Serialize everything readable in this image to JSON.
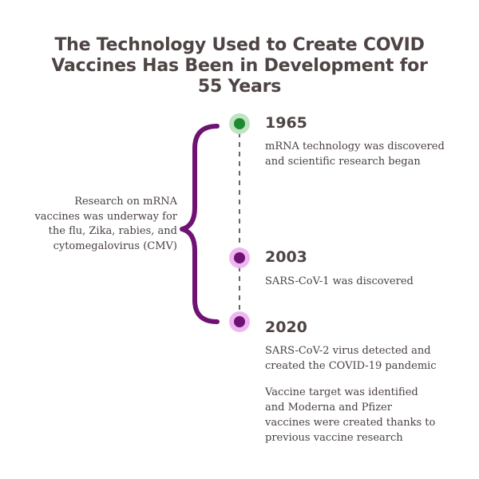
{
  "title": {
    "line1": "The Technology Used to Create COVID",
    "line2": "Vaccines Has Been in Development for",
    "line3": "55 Years"
  },
  "side_note": {
    "line1": "Research on mRNA",
    "line2": "vaccines was underway for",
    "line3": "the flu, Zika, rabies, and",
    "line4": "cytomegalovirus (CMV)"
  },
  "events": [
    {
      "year": "1965",
      "desc_line1": "mRNA technology was discovered",
      "desc_line2": "and scientific research began"
    },
    {
      "year": "2003",
      "desc_line1": "SARS-CoV-1 was discovered"
    },
    {
      "year": "2020",
      "desc_line1": "SARS-CoV-2 virus detected and",
      "desc_line2": "created the COVID-19 pandemic",
      "extra_line1": "Vaccine target was identified",
      "extra_line2": "and Moderna and Pfizer",
      "extra_line3": "vaccines were created thanks to",
      "extra_line4": "previous vaccine research"
    }
  ],
  "colors": {
    "green_dot": "#1e8a2e",
    "green_halo": "#bfe3c3",
    "purple_dot": "#6e1273",
    "purple_halo": "#f0b6f2",
    "brace": "#6e1273",
    "dashed_line": "#666666",
    "text": "#4a4040"
  }
}
